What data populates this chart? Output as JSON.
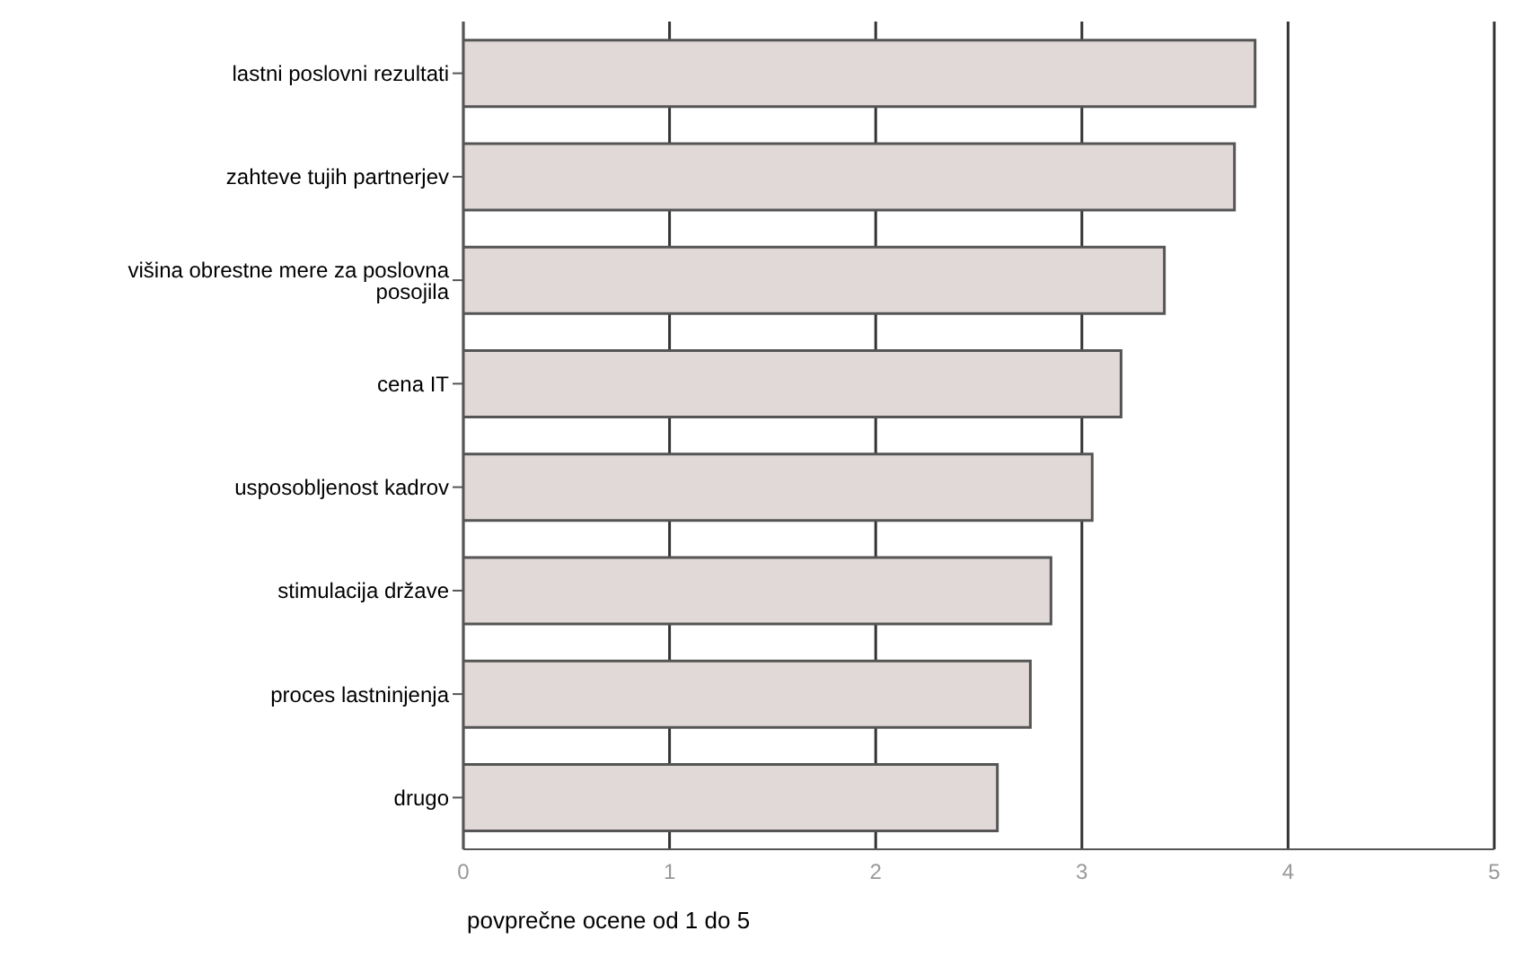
{
  "chart_data": {
    "type": "bar",
    "orientation": "horizontal",
    "xlabel": "povprečne ocene od 1 do 5",
    "categories": [
      "lastni poslovni rezultati",
      "zahteve tujih partnerjev",
      "višina obrestne mere za poslovna posojila",
      "cena IT",
      "usposobljenost kadrov",
      "stimulacija države",
      "proces lastninjenja",
      "drugo"
    ],
    "values": [
      3.84,
      3.74,
      3.4,
      3.19,
      3.05,
      2.85,
      2.75,
      2.59
    ],
    "color": "#e0d9d7",
    "xlim": [
      0,
      5
    ],
    "xticks": [
      0,
      1,
      2,
      3,
      4,
      5
    ],
    "grid": "x"
  }
}
